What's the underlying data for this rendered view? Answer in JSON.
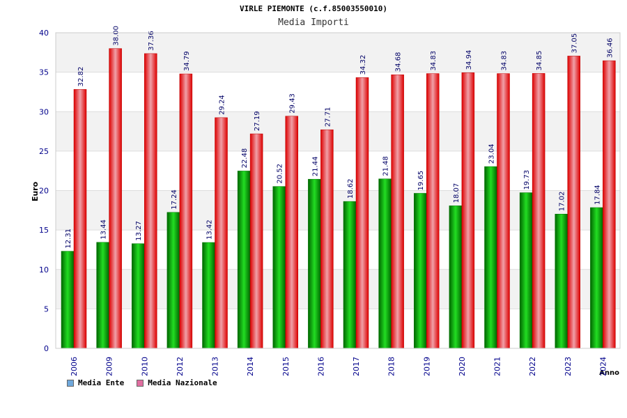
{
  "header": {
    "title": "VIRLE PIEMONTE (c.f.85003550010)",
    "subtitle": "Media Importi"
  },
  "legend": {
    "ente_label": "Media Ente",
    "ente_color": "#6fa8dc",
    "nazionale_label": "Media Nazionale",
    "nazionale_color": "#e06ea0"
  },
  "chart_data": {
    "type": "bar",
    "title": "Media Importi",
    "xlabel": "Anno",
    "ylabel": "Euro",
    "ylim": [
      0,
      40
    ],
    "yticks": [
      "0",
      "5",
      "10",
      "15",
      "20",
      "25",
      "30",
      "35",
      "40"
    ],
    "categories": [
      "2006",
      "2009",
      "2010",
      "2012",
      "2013",
      "2014",
      "2015",
      "2016",
      "2017",
      "2018",
      "2019",
      "2020",
      "2021",
      "2022",
      "2023",
      "2024"
    ],
    "series": [
      {
        "name": "Media Ente",
        "color": "#00aa00",
        "values": [
          12.31,
          13.44,
          13.27,
          17.24,
          13.42,
          22.48,
          20.52,
          21.44,
          18.62,
          21.48,
          19.65,
          18.07,
          23.04,
          19.73,
          17.02,
          17.84
        ],
        "labels": [
          "12.31",
          "13.44",
          "13.27",
          "17.24",
          "13.42",
          "22.48",
          "20.52",
          "21.44",
          "18.62",
          "21.48",
          "19.65",
          "18.07",
          "23.04",
          "19.73",
          "17.02",
          "17.84"
        ]
      },
      {
        "name": "Media Nazionale",
        "color": "#ee1111",
        "values": [
          32.82,
          38.0,
          37.36,
          34.79,
          29.24,
          27.19,
          29.43,
          27.71,
          34.32,
          34.68,
          34.83,
          34.94,
          34.83,
          34.85,
          37.05,
          36.46
        ],
        "labels": [
          "32.82",
          "38.00",
          "37.36",
          "34.79",
          "29.24",
          "27.19",
          "29.43",
          "27.71",
          "34.32",
          "34.68",
          "34.83",
          "34.94",
          "34.83",
          "34.85",
          "37.05",
          "36.46"
        ]
      }
    ]
  }
}
